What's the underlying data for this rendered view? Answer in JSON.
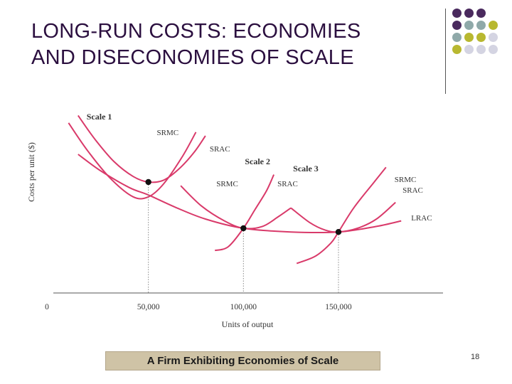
{
  "slide": {
    "title_line1": "LONG-RUN COSTS: ECONOMIES",
    "title_line2": "AND DISECONOMIES OF SCALE",
    "caption": "A Firm Exhibiting Economies of Scale",
    "page_number": "18",
    "dot_colors": [
      "#4a2a5e",
      "#8fa9a9",
      "#b8b830",
      "#d4d4e2"
    ]
  },
  "chart_data": {
    "type": "line",
    "xlabel": "Units of output",
    "ylabel": "Costs per unit ($)",
    "x_ticks": [
      {
        "value": 0,
        "label": "0"
      },
      {
        "value": 50000,
        "label": "50,000"
      },
      {
        "value": 100000,
        "label": "100,000"
      },
      {
        "value": 150000,
        "label": "150,000"
      }
    ],
    "xlim": [
      0,
      205000
    ],
    "ylim": [
      0,
      10
    ],
    "scales": [
      {
        "name": "Scale 1",
        "optimum_output": 50000,
        "optimum_cost": 6.0,
        "srac": {
          "label": "SRAC",
          "points": [
            [
              13000,
              9.6
            ],
            [
              22000,
              8.3
            ],
            [
              32000,
              7.1
            ],
            [
              42000,
              6.3
            ],
            [
              50000,
              6.0
            ],
            [
              58000,
              6.1
            ],
            [
              66000,
              6.7
            ],
            [
              74000,
              7.6
            ],
            [
              80000,
              8.5
            ]
          ]
        },
        "srmc": {
          "label": "SRMC",
          "points": [
            [
              8000,
              9.2
            ],
            [
              18000,
              7.7
            ],
            [
              30000,
              6.2
            ],
            [
              42000,
              5.2
            ],
            [
              50000,
              5.2
            ],
            [
              58000,
              5.9
            ],
            [
              68000,
              7.4
            ],
            [
              75000,
              8.7
            ]
          ]
        }
      },
      {
        "name": "Scale 2",
        "optimum_output": 100000,
        "optimum_cost": 3.5,
        "srac": {
          "label": "SRAC",
          "points": [
            [
              67000,
              5.8
            ],
            [
              78000,
              4.7
            ],
            [
              90000,
              3.9
            ],
            [
              100000,
              3.5
            ],
            [
              110000,
              3.6
            ],
            [
              118000,
              4.1
            ],
            [
              125000,
              4.6
            ]
          ]
        },
        "srmc": {
          "label": "SRMC",
          "points": [
            [
              85000,
              2.3
            ],
            [
              92000,
              2.5
            ],
            [
              100000,
              3.5
            ],
            [
              106000,
              4.5
            ],
            [
              112000,
              5.5
            ],
            [
              116000,
              6.4
            ]
          ]
        }
      },
      {
        "name": "Scale 3",
        "optimum_output": 150000,
        "optimum_cost": 3.3,
        "srac": {
          "label": "SRAC",
          "points": [
            [
              125000,
              4.6
            ],
            [
              135000,
              3.8
            ],
            [
              143000,
              3.4
            ],
            [
              150000,
              3.3
            ],
            [
              160000,
              3.5
            ],
            [
              170000,
              4.0
            ],
            [
              180000,
              4.9
            ]
          ]
        },
        "srmc": {
          "label": "SRMC",
          "points": [
            [
              128000,
              1.6
            ],
            [
              138000,
              2.0
            ],
            [
              146000,
              2.7
            ],
            [
              150000,
              3.3
            ],
            [
              158000,
              4.6
            ],
            [
              168000,
              5.9
            ],
            [
              175000,
              6.8
            ]
          ]
        }
      }
    ],
    "lrac": {
      "label": "LRAC",
      "points": [
        [
          13000,
          7.5
        ],
        [
          25000,
          6.6
        ],
        [
          40000,
          5.7
        ],
        [
          50000,
          5.3
        ],
        [
          65000,
          4.6
        ],
        [
          80000,
          4.0
        ],
        [
          100000,
          3.5
        ],
        [
          125000,
          3.3
        ],
        [
          150000,
          3.3
        ],
        [
          170000,
          3.6
        ],
        [
          183000,
          3.9
        ]
      ]
    },
    "series_color": "#d93a6a",
    "grid": false
  }
}
